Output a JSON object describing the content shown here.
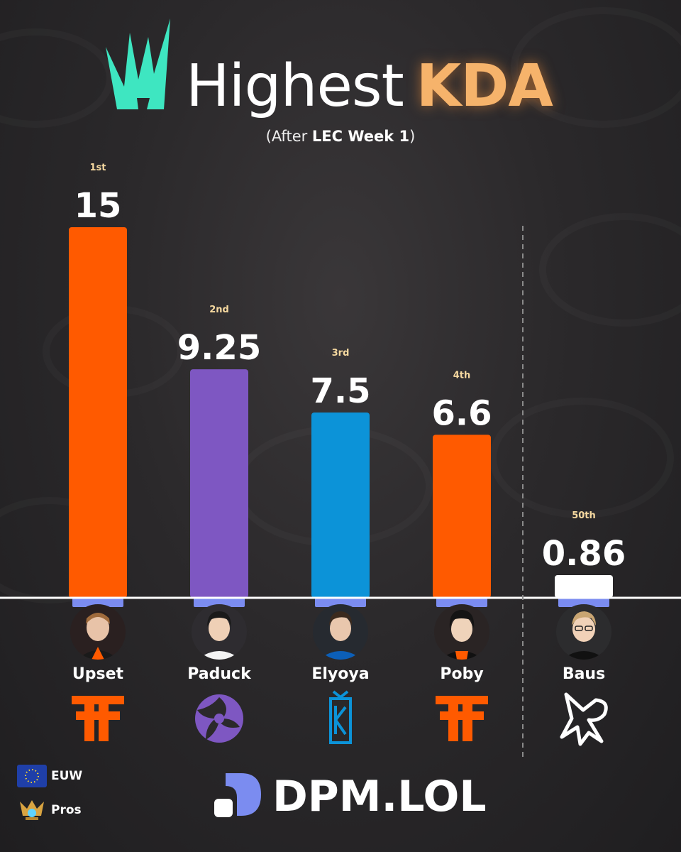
{
  "header": {
    "title_light": "Highest",
    "title_bold": "KDA",
    "subtitle_open": "(After ",
    "subtitle_bold": "LEC Week 1",
    "subtitle_close": ")"
  },
  "chart_data": {
    "type": "bar",
    "categories": [
      "Upset",
      "Paduck",
      "Elyoya",
      "Poby",
      "Baus"
    ],
    "values": [
      15,
      9.25,
      7.5,
      6.6,
      0.86
    ],
    "value_labels": [
      "15",
      "9.25",
      "7.5",
      "6.6",
      "0.86"
    ],
    "rank_labels": [
      "1st",
      "2nd",
      "3rd",
      "4th",
      "50th"
    ],
    "colors": [
      "#ff5a00",
      "#7e57c2",
      "#0c93d8",
      "#ff5a00",
      "#ffffff"
    ],
    "ylim": [
      0,
      15
    ],
    "separator_before_index": 4
  },
  "players": [
    {
      "name": "Upset",
      "team_icon": "fnatic-logo-icon"
    },
    {
      "name": "Paduck",
      "team_icon": "shifters-logo-icon"
    },
    {
      "name": "Elyoya",
      "team_icon": "movistar-koi-logo-icon"
    },
    {
      "name": "Poby",
      "team_icon": "fnatic-logo-icon"
    },
    {
      "name": "Baus",
      "team_icon": "los-ratones-logo-icon"
    }
  ],
  "legend": [
    {
      "label": "EUW",
      "icon": "eu-flag-icon"
    },
    {
      "label": "Pros",
      "icon": "pro-emblem-icon"
    }
  ],
  "brand": {
    "name": "DPM.LOL"
  },
  "colors": {
    "accent": "#f6b36b",
    "lec_teal": "#3ee6c1",
    "brand_blue": "#7b8cf0"
  }
}
